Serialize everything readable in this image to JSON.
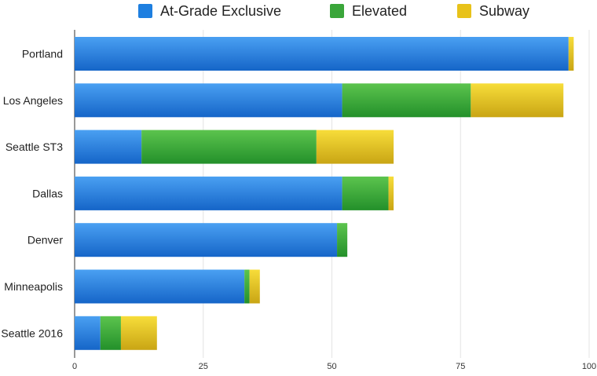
{
  "chart_data": {
    "type": "bar",
    "orientation": "horizontal",
    "stacked": true,
    "categories": [
      "Portland",
      "Los Angeles",
      "Seattle ST3",
      "Dallas",
      "Denver",
      "Minneapolis",
      "Seattle 2016"
    ],
    "series": [
      {
        "name": "At-Grade Exclusive",
        "color": "#1e7fe0",
        "values": [
          96,
          52,
          13,
          52,
          51,
          33,
          5
        ]
      },
      {
        "name": "Elevated",
        "color": "#3aa63a",
        "values": [
          0,
          25,
          34,
          9,
          2,
          1,
          4
        ]
      },
      {
        "name": "Subway",
        "color": "#e8c21a",
        "values": [
          1,
          18,
          15,
          1,
          0,
          2,
          7
        ]
      }
    ],
    "xlim": [
      0,
      100
    ],
    "xticks": [
      "0",
      "25",
      "50",
      "75",
      "100"
    ],
    "xtick_values": [
      0,
      25,
      50,
      75,
      100
    ],
    "grid": true,
    "legend_position": "top"
  },
  "legend": {
    "items": [
      {
        "label": "At-Grade Exclusive",
        "color": "#1e7fe0"
      },
      {
        "label": "Elevated",
        "color": "#3aa63a"
      },
      {
        "label": "Subway",
        "color": "#e8c21a"
      }
    ]
  }
}
